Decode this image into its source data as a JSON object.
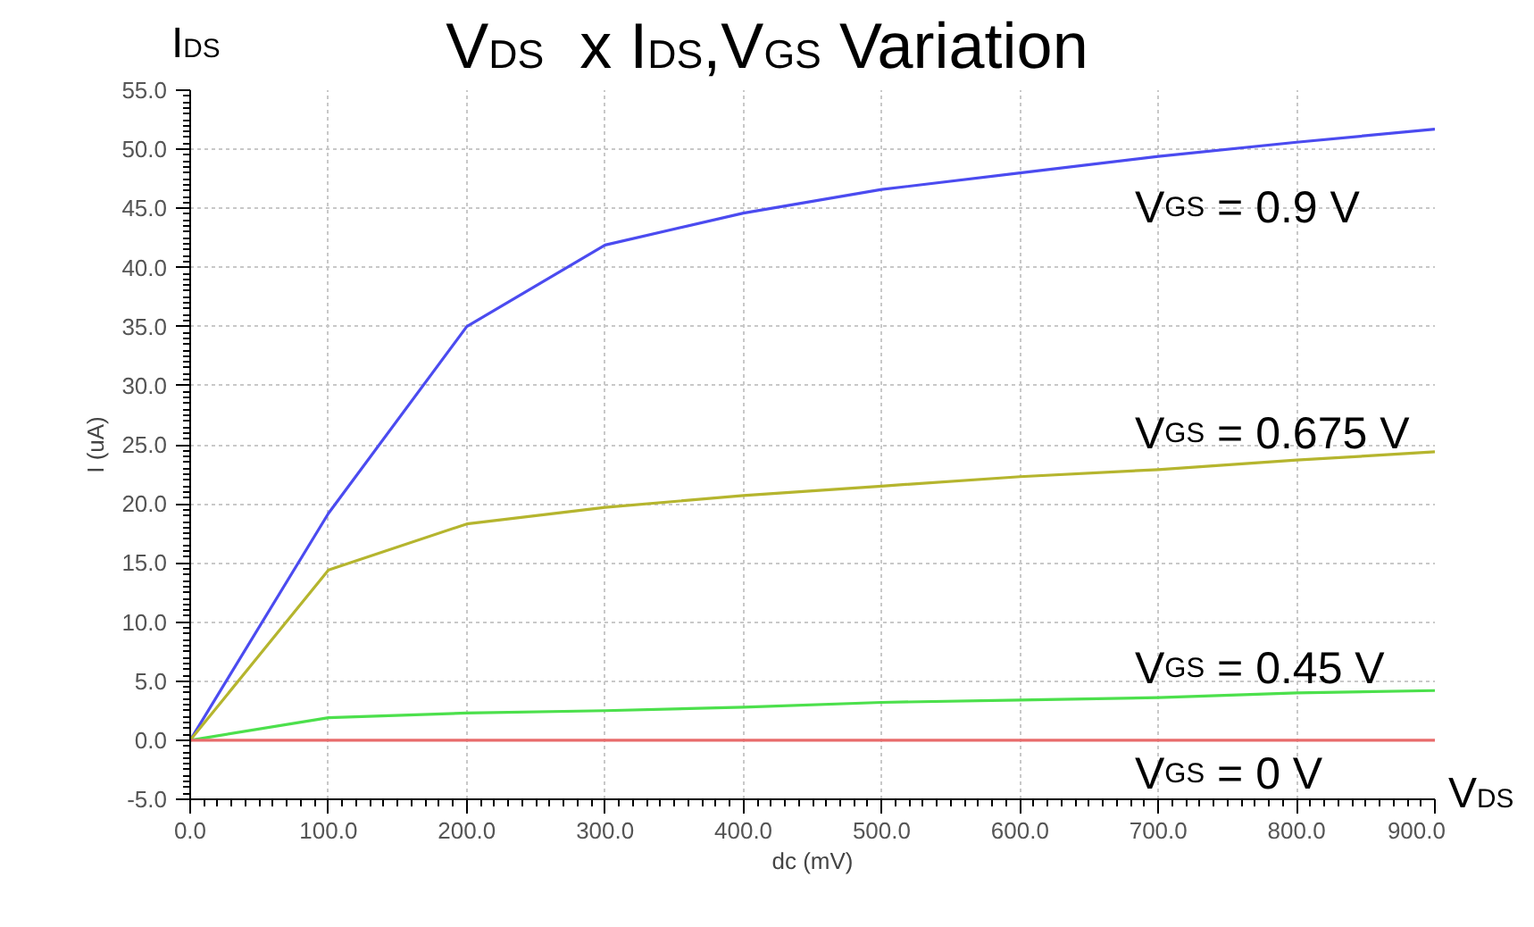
{
  "chart_data": {
    "type": "line",
    "title": "V$_{DS}$  x I$_{DS}$,V$_{GS}$ Variation",
    "xlabel": "dc (mV)",
    "ylabel": "I (uA)",
    "annotations": [
      "I$_{DS}$",
      "V$_{DS}$"
    ],
    "x": [
      0,
      100,
      200,
      300,
      400,
      500,
      600,
      700,
      800,
      900
    ],
    "series": [
      {
        "name": "V$_{GS}$ = 0.9 V",
        "color": "#4b4bf0",
        "values": [
          0,
          19.2,
          35,
          41.9,
          44.6,
          46.6,
          48,
          49.4,
          50.6,
          51.7
        ]
      },
      {
        "name": "V$_{GS}$ = 0.675 V",
        "color": "#b5b52e",
        "values": [
          0,
          14.4,
          18.3,
          19.7,
          20.7,
          21.5,
          22.3,
          22.9,
          23.7,
          24.4
        ]
      },
      {
        "name": "V$_{GS}$ = 0.45 V",
        "color": "#4ce04c",
        "values": [
          0,
          1.9,
          2.3,
          2.5,
          2.8,
          3.2,
          3.4,
          3.6,
          4.0,
          4.2
        ]
      },
      {
        "name": "V$_{GS}$ = 0 V",
        "color": "#e86b6b",
        "values": [
          0,
          0,
          0,
          0,
          0,
          0,
          0,
          0,
          0,
          0
        ]
      }
    ],
    "xlim": [
      0,
      900
    ],
    "ylim": [
      -5,
      55
    ],
    "xticks": [
      {
        "value": 0,
        "label": "0.0"
      },
      {
        "value": 100,
        "label": "100.0"
      },
      {
        "value": 200,
        "label": "200.0"
      },
      {
        "value": 300,
        "label": "300.0"
      },
      {
        "value": 400,
        "label": "400.0"
      },
      {
        "value": 500,
        "label": "500.0"
      },
      {
        "value": 600,
        "label": "600.0"
      },
      {
        "value": 700,
        "label": "700.0"
      },
      {
        "value": 800,
        "label": "800.0"
      },
      {
        "value": 900,
        "label": "900.0"
      }
    ],
    "yticks": [
      {
        "value": -5,
        "label": "-5.0"
      },
      {
        "value": 0,
        "label": "0.0"
      },
      {
        "value": 5,
        "label": "5.0"
      },
      {
        "value": 10,
        "label": "10.0"
      },
      {
        "value": 15,
        "label": "15.0"
      },
      {
        "value": 20,
        "label": "20.0"
      },
      {
        "value": 25,
        "label": "25.0"
      },
      {
        "value": 30,
        "label": "30.0"
      },
      {
        "value": 35,
        "label": "35.0"
      },
      {
        "value": 40,
        "label": "40.0"
      },
      {
        "value": 45,
        "label": "45.0"
      },
      {
        "value": 50,
        "label": "50.0"
      },
      {
        "value": 55,
        "label": "55.0"
      }
    ],
    "grid": true,
    "marker": "none",
    "line_style": "solid"
  }
}
